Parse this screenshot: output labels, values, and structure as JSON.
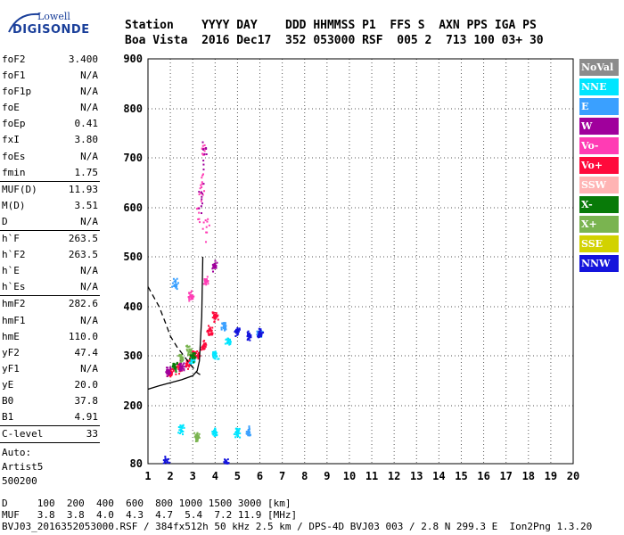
{
  "logo": {
    "line1": "Lowell",
    "line2": "DIGISONDE"
  },
  "header": {
    "line1": "Station    YYYY DAY    DDD HHMMSS P1  FFS S  AXN PPS IGA PS",
    "line2": "Boa Vista  2016 Dec17  352 053000 RSF  005 2  713 100 03+ 30"
  },
  "params": [
    {
      "k": "foF2",
      "v": "3.400"
    },
    {
      "k": "foF1",
      "v": "N/A"
    },
    {
      "k": "foF1p",
      "v": "N/A"
    },
    {
      "k": "foE",
      "v": "N/A"
    },
    {
      "k": "foEp",
      "v": "0.41"
    },
    {
      "k": "fxI",
      "v": "3.80"
    },
    {
      "k": "foEs",
      "v": "N/A"
    },
    {
      "k": "fmin",
      "v": "1.75"
    },
    {
      "k": "MUF(D)",
      "v": "11.93"
    },
    {
      "k": "M(D)",
      "v": "3.51"
    },
    {
      "k": "D",
      "v": "N/A"
    },
    {
      "k": "h`F",
      "v": "263.5"
    },
    {
      "k": "h`F2",
      "v": "263.5"
    },
    {
      "k": "h`E",
      "v": "N/A"
    },
    {
      "k": "h`Es",
      "v": "N/A"
    },
    {
      "k": "hmF2",
      "v": "282.6"
    },
    {
      "k": "hmF1",
      "v": "N/A"
    },
    {
      "k": "hmE",
      "v": "110.0"
    },
    {
      "k": "yF2",
      "v": "47.4"
    },
    {
      "k": "yF1",
      "v": "N/A"
    },
    {
      "k": "yE",
      "v": "20.0"
    },
    {
      "k": "B0",
      "v": "37.8"
    },
    {
      "k": "B1",
      "v": "4.91"
    },
    {
      "k": "C-level",
      "v": "33"
    }
  ],
  "auto": [
    "Auto:",
    "Artist5",
    "500200"
  ],
  "legend": [
    {
      "label": "NoVal",
      "color": "#8c8c8c"
    },
    {
      "label": "NNE",
      "color": "#00e5ff"
    },
    {
      "label": "E",
      "color": "#3aa0ff"
    },
    {
      "label": "W",
      "color": "#a0009c"
    },
    {
      "label": "Vo-",
      "color": "#ff3cb4"
    },
    {
      "label": "Vo+",
      "color": "#ff0a3c"
    },
    {
      "label": "SSW",
      "color": "#ffb4b4"
    },
    {
      "label": "X-",
      "color": "#087a08"
    },
    {
      "label": "X+",
      "color": "#7ab450"
    },
    {
      "label": "SSE",
      "color": "#d2d200"
    },
    {
      "label": "NNW",
      "color": "#1414dc"
    }
  ],
  "bottom": {
    "line1": "D     100  200  400  600  800 1000 1500 3000 [km]",
    "line2": "MUF   3.8  3.8  4.0  4.3  4.7  5.4  7.2 11.9 [MHz]",
    "line3": "BVJ03_2016352053000.RSF / 384fx512h 50 kHz 2.5 km / DPS-4D BVJ03 003 / 2.8 N 299.3 E  Ion2Png 1.3.20"
  },
  "chart_data": {
    "type": "scatter",
    "xlim": [
      1,
      20
    ],
    "ylim": [
      80,
      900
    ],
    "x_ticks": [
      1,
      2,
      3,
      4,
      5,
      6,
      7,
      8,
      9,
      10,
      11,
      12,
      13,
      14,
      15,
      16,
      17,
      18,
      19,
      20
    ],
    "y_ticks": [
      80,
      200,
      300,
      400,
      500,
      600,
      700,
      800,
      900
    ],
    "grid": true,
    "legend_position": "right",
    "series": [
      {
        "name": "Vo+",
        "color": "#ff0a3c",
        "points": [
          [
            2.0,
            265
          ],
          [
            2.4,
            275
          ],
          [
            2.8,
            285
          ],
          [
            3.2,
            300
          ],
          [
            3.5,
            320
          ],
          [
            3.8,
            350
          ],
          [
            4.0,
            380
          ],
          [
            3.0,
            300
          ]
        ]
      },
      {
        "name": "Vo-",
        "color": "#ff3cb4",
        "points": [
          [
            3.4,
            650
          ],
          [
            3.5,
            710
          ],
          [
            3.6,
            560
          ],
          [
            3.3,
            600
          ],
          [
            3.6,
            450
          ],
          [
            2.9,
            420
          ]
        ]
      },
      {
        "name": "W",
        "color": "#a0009c",
        "points": [
          [
            1.9,
            268
          ],
          [
            2.5,
            280
          ],
          [
            3.4,
            620
          ],
          [
            4.0,
            480
          ],
          [
            3.5,
            700
          ]
        ]
      },
      {
        "name": "NNE",
        "color": "#00e5ff",
        "points": [
          [
            3.0,
            290
          ],
          [
            4.0,
            300
          ],
          [
            4.6,
            330
          ],
          [
            2.5,
            150
          ],
          [
            4.0,
            145
          ],
          [
            5.0,
            145
          ]
        ]
      },
      {
        "name": "E",
        "color": "#3aa0ff",
        "points": [
          [
            2.2,
            445
          ],
          [
            4.4,
            360
          ],
          [
            5.5,
            145
          ],
          [
            6.0,
            345
          ]
        ]
      },
      {
        "name": "NNW",
        "color": "#1414dc",
        "points": [
          [
            5.0,
            350
          ],
          [
            5.5,
            340
          ],
          [
            6.0,
            345
          ],
          [
            1.8,
            82
          ],
          [
            4.5,
            82
          ]
        ]
      },
      {
        "name": "X-",
        "color": "#087a08",
        "points": [
          [
            2.2,
            280
          ],
          [
            3.0,
            300
          ]
        ]
      },
      {
        "name": "X+",
        "color": "#7ab450",
        "points": [
          [
            2.5,
            295
          ],
          [
            2.8,
            310
          ],
          [
            3.2,
            135
          ]
        ]
      }
    ],
    "profile_solid": [
      [
        1.0,
        233
      ],
      [
        1.5,
        240
      ],
      [
        2.0,
        246
      ],
      [
        2.5,
        252
      ],
      [
        3.0,
        260
      ],
      [
        3.2,
        270
      ],
      [
        3.3,
        290
      ],
      [
        3.4,
        380
      ],
      [
        3.45,
        500
      ]
    ],
    "profile_dashed": [
      [
        1.0,
        440
      ],
      [
        1.5,
        400
      ],
      [
        1.8,
        365
      ],
      [
        2.0,
        340
      ],
      [
        2.3,
        318
      ],
      [
        2.6,
        300
      ],
      [
        2.9,
        282
      ],
      [
        3.2,
        266
      ],
      [
        3.4,
        260
      ]
    ]
  }
}
